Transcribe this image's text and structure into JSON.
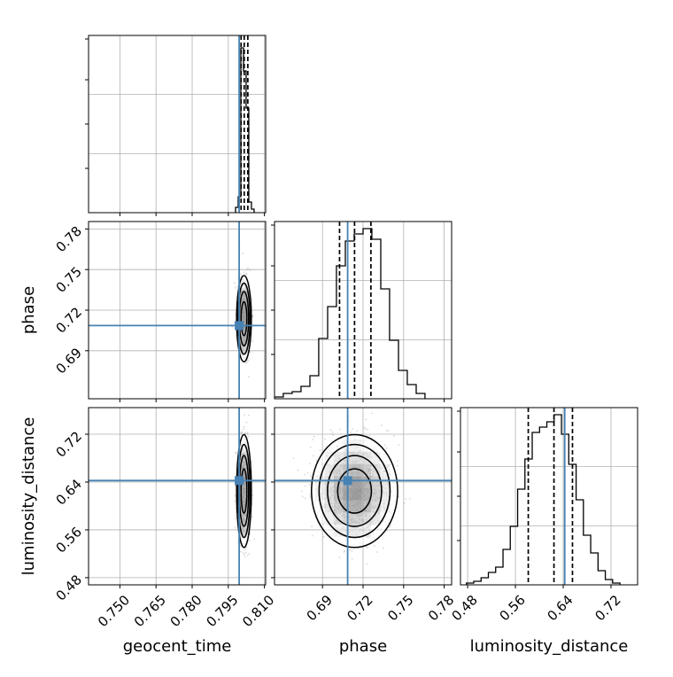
{
  "chart_data": {
    "type": "corner",
    "parameters": [
      {
        "key": "geocent_time",
        "label": "geocent_time",
        "ticks": [
          "0.750",
          "0.765",
          "0.780",
          "0.795",
          "0.810"
        ],
        "tick_values": [
          0.75,
          0.765,
          0.78,
          0.795,
          0.81
        ],
        "range": [
          0.737,
          0.8105
        ],
        "truth": 0.7995,
        "quantiles": [
          0.8003,
          0.8016,
          0.8031
        ]
      },
      {
        "key": "phase",
        "label": "phase",
        "ticks": [
          "0.69",
          "0.72",
          "0.75",
          "0.78"
        ],
        "tick_values": [
          0.69,
          0.72,
          0.75,
          0.78
        ],
        "range": [
          0.6545,
          0.7855
        ],
        "truth": 0.7086,
        "quantiles": [
          0.7026,
          0.7137,
          0.7258
        ]
      },
      {
        "key": "luminosity_distance",
        "label": "luminosity_distance",
        "ticks": [
          "0.48",
          "0.56",
          "0.64",
          "0.72"
        ],
        "tick_values": [
          0.48,
          0.56,
          0.64,
          0.72
        ],
        "range": [
          0.468,
          0.7645
        ],
        "truth": 0.6425,
        "quantiles": [
          0.5815,
          0.6245,
          0.6555
        ]
      }
    ],
    "histograms": {
      "geocent_time": {
        "bin_edges": [
          0.798,
          0.7991,
          0.8002,
          0.8013,
          0.8024,
          0.8035,
          0.8046,
          0.8057
        ],
        "counts": [
          0.03,
          0.09,
          0.93,
          0.8,
          0.59,
          0.06,
          0.02
        ]
      },
      "phase": {
        "bin_edges": [
          0.6545,
          0.661,
          0.6676,
          0.6741,
          0.6807,
          0.6872,
          0.6938,
          0.7003,
          0.7069,
          0.7134,
          0.72,
          0.7265,
          0.7331,
          0.7396,
          0.7462,
          0.7527,
          0.7593,
          0.7658
        ],
        "counts": [
          0.01,
          0.03,
          0.04,
          0.07,
          0.13,
          0.34,
          0.52,
          0.75,
          0.89,
          0.93,
          0.96,
          0.9,
          0.62,
          0.33,
          0.16,
          0.08,
          0.03
        ]
      },
      "luminosity_distance": {
        "bin_edges": [
          0.478,
          0.4902,
          0.5025,
          0.5147,
          0.5269,
          0.5392,
          0.5514,
          0.5637,
          0.5759,
          0.5881,
          0.6004,
          0.6126,
          0.6248,
          0.6371,
          0.6493,
          0.6616,
          0.6738,
          0.686,
          0.6983,
          0.7105,
          0.7227,
          0.735
        ],
        "counts": [
          0.01,
          0.02,
          0.04,
          0.07,
          0.1,
          0.2,
          0.33,
          0.54,
          0.71,
          0.86,
          0.89,
          0.92,
          0.96,
          0.85,
          0.68,
          0.48,
          0.28,
          0.18,
          0.08,
          0.03,
          0.01
        ]
      }
    },
    "scatter": [
      {
        "x": "geocent_time",
        "y": "phase",
        "cx": 0.8015,
        "cy": 0.7137,
        "sx": 0.0012,
        "sy": 0.0125
      },
      {
        "x": "geocent_time",
        "y": "luminosity_distance",
        "cx": 0.8015,
        "cy": 0.625,
        "sx": 0.0012,
        "sy": 0.037
      },
      {
        "x": "phase",
        "y": "luminosity_distance",
        "cx": 0.7137,
        "cy": 0.625,
        "sx": 0.0125,
        "sy": 0.037
      }
    ],
    "truth_color": "#4682b4",
    "line_color": "#000000",
    "quantile_style": "dashed",
    "grid": true
  }
}
